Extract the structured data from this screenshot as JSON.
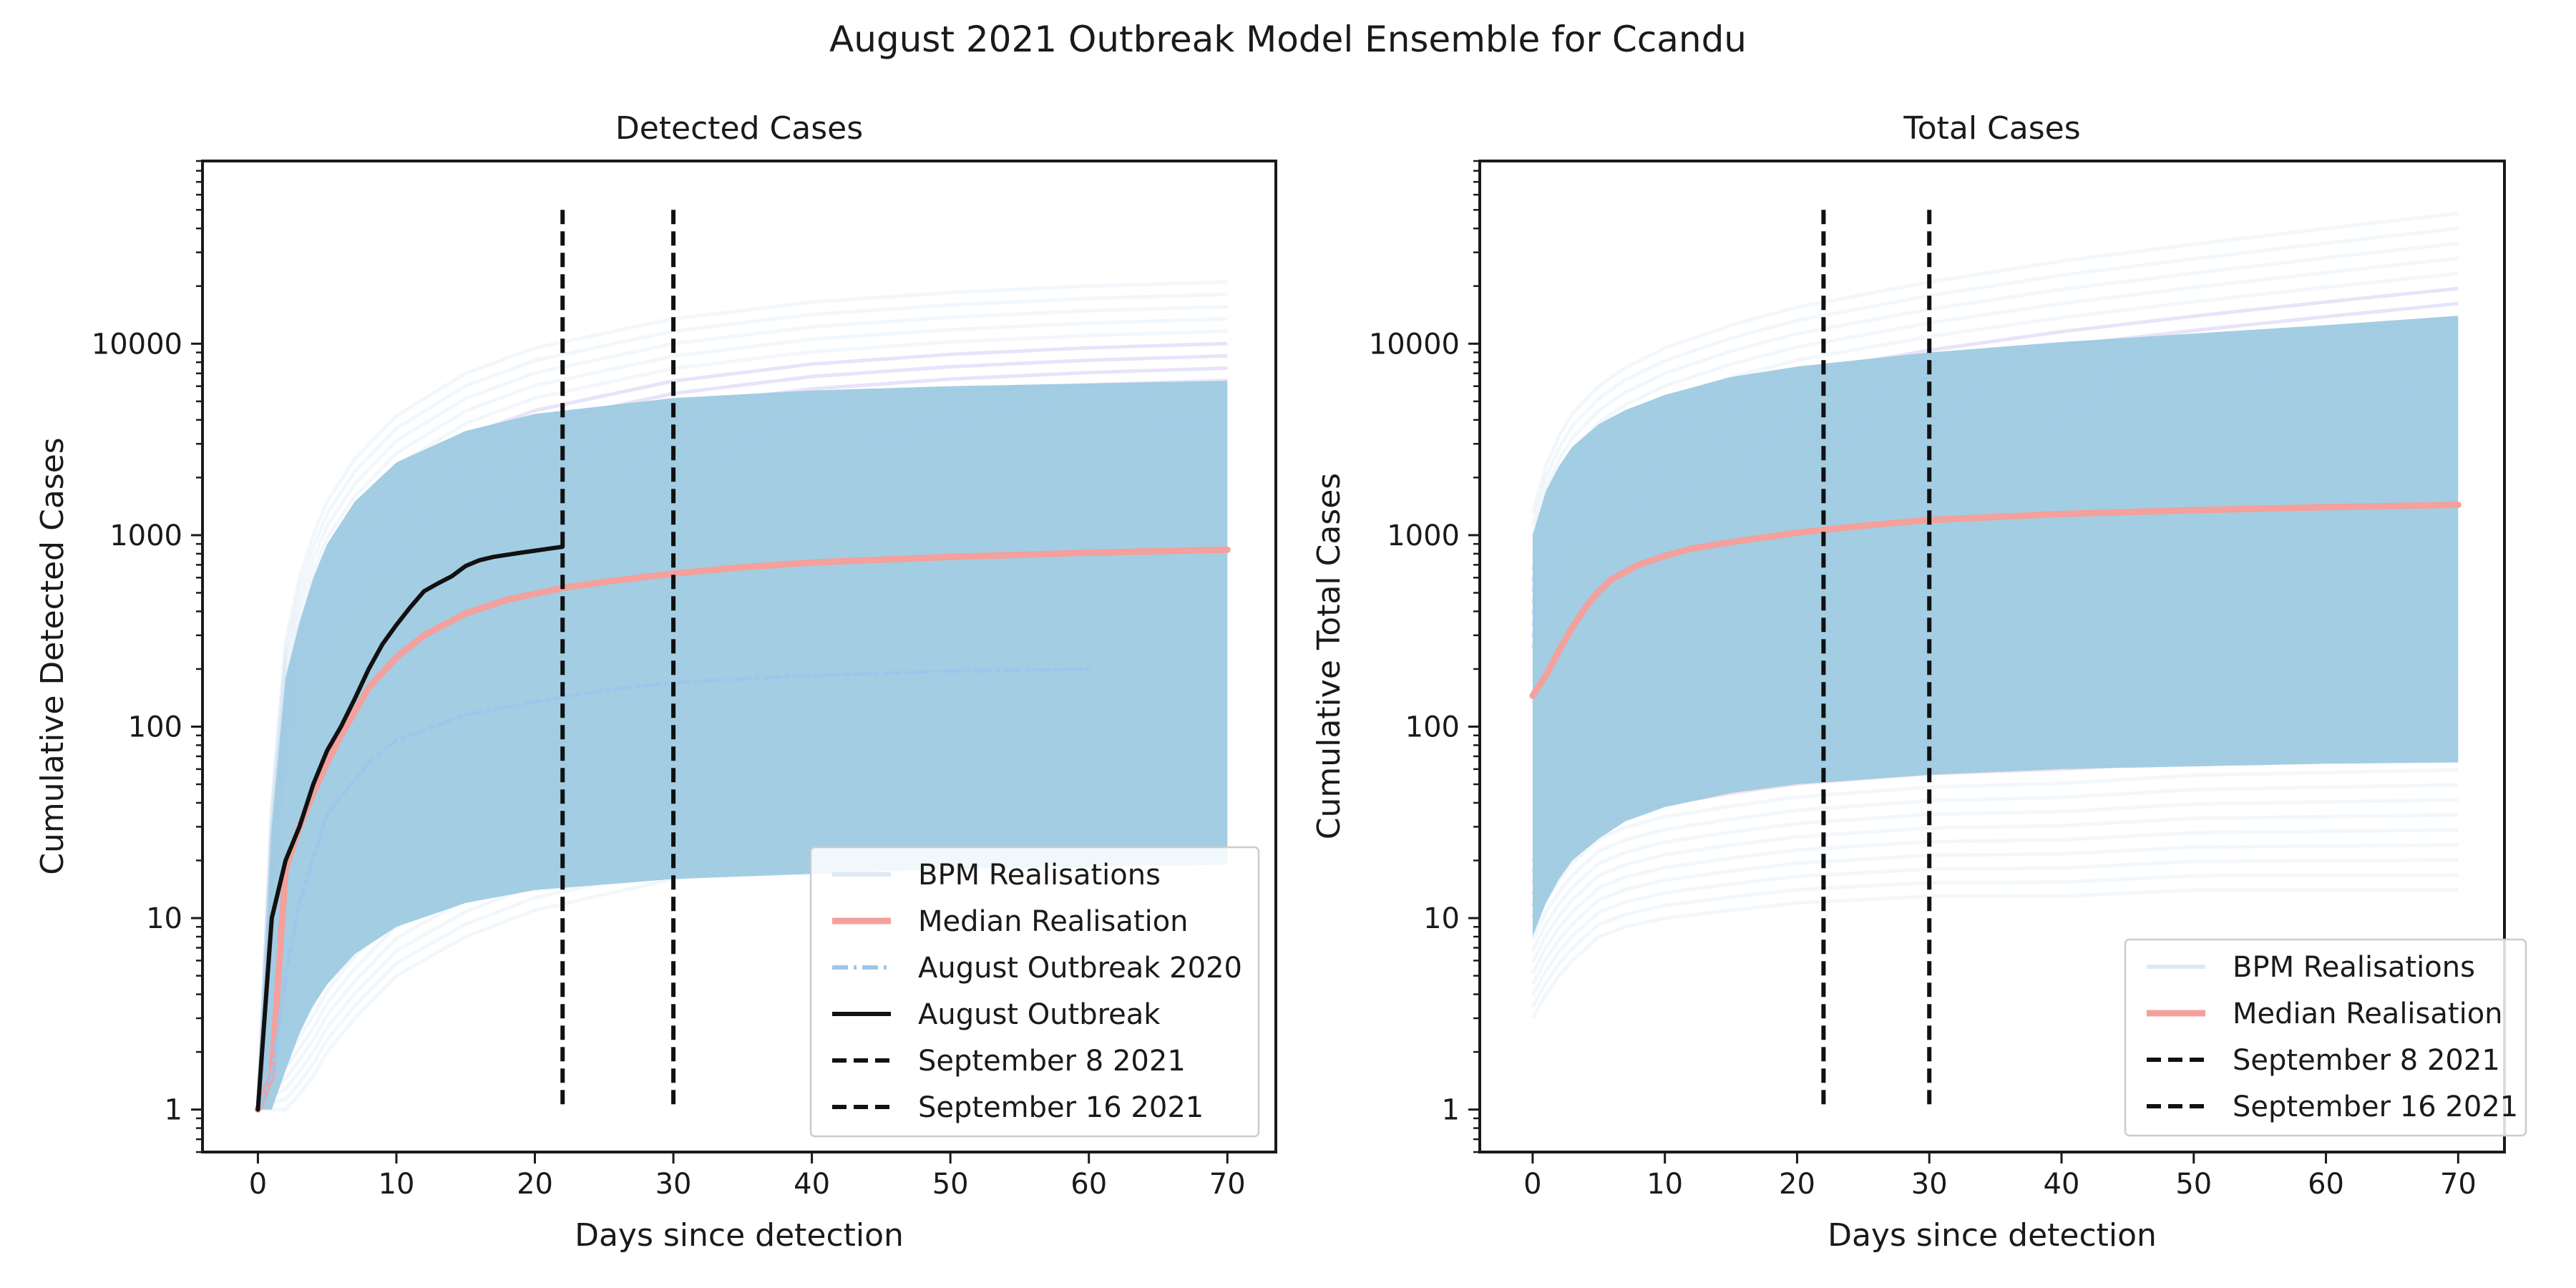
{
  "figure": {
    "title": "August 2021 Outbreak Model Ensemble for Ccandu"
  },
  "colors": {
    "ensemble_band": "#9ecae1",
    "realisation_line": "#c6dbef",
    "upper_tint": "#c9c4f5",
    "lower_tint": "#e6bfd6",
    "median": "#f4a09c",
    "outbreak_2020": "#9ec5ec",
    "outbreak_2021": "#111111",
    "vline": "#111111"
  },
  "chart_data": [
    {
      "type": "line",
      "title": "Detected Cases",
      "xlabel": "Days since detection",
      "ylabel": "Cumulative Detected Cases",
      "yscale": "log",
      "xlim": [
        -4,
        73.5
      ],
      "ylim": [
        0.6,
        90000
      ],
      "xticks": [
        0,
        10,
        20,
        30,
        40,
        50,
        60,
        70
      ],
      "yticks": [
        1,
        10,
        100,
        1000,
        10000
      ],
      "grid": false,
      "legend_position": "lower-right",
      "ensemble_band": {
        "name": "BPM Realisations",
        "x": [
          0,
          1,
          2,
          3,
          4,
          5,
          7,
          10,
          15,
          20,
          30,
          40,
          50,
          60,
          70
        ],
        "upper": [
          1,
          30,
          180,
          350,
          600,
          900,
          1500,
          2400,
          3500,
          4300,
          5200,
          5700,
          6000,
          6200,
          6400
        ],
        "lower": [
          1,
          1,
          1.6,
          2.5,
          3.5,
          4.5,
          6.5,
          9,
          12,
          14,
          16,
          17,
          18,
          18.5,
          19
        ],
        "upper_envelope": [
          1,
          40,
          280,
          600,
          1000,
          1500,
          2500,
          4200,
          7000,
          9500,
          13500,
          16500,
          18500,
          20000,
          21000
        ],
        "lower_envelope": [
          1,
          1,
          1,
          1.2,
          1.5,
          2,
          3,
          5,
          8,
          11,
          16,
          20,
          23,
          25,
          27
        ]
      },
      "series": [
        {
          "name": "Median Realisation",
          "x": [
            0,
            1,
            2,
            3,
            4,
            5,
            6,
            7,
            8,
            10,
            12,
            15,
            18,
            22,
            25,
            30,
            35,
            40,
            50,
            60,
            70
          ],
          "y": [
            1,
            1.5,
            18,
            30,
            45,
            65,
            90,
            120,
            160,
            230,
            300,
            390,
            460,
            530,
            570,
            630,
            680,
            720,
            770,
            810,
            840
          ]
        },
        {
          "name": "August Outbreak 2020",
          "x": [
            0,
            1,
            2,
            3,
            5,
            8,
            10,
            15,
            20,
            25,
            30,
            40,
            50,
            60
          ],
          "y": [
            1,
            1.5,
            5,
            12,
            35,
            65,
            85,
            115,
            135,
            155,
            170,
            185,
            195,
            200
          ]
        },
        {
          "name": "August Outbreak",
          "x": [
            0,
            1,
            2,
            3,
            4,
            5,
            6,
            7,
            8,
            9,
            10,
            11,
            12,
            13,
            14,
            15,
            16,
            17,
            18,
            19,
            20,
            21,
            22
          ],
          "y": [
            1,
            10,
            20,
            30,
            50,
            75,
            100,
            140,
            200,
            270,
            340,
            420,
            510,
            560,
            610,
            690,
            740,
            770,
            790,
            810,
            830,
            850,
            870
          ]
        }
      ],
      "vlines": [
        {
          "name": "September 8 2021",
          "x": 22
        },
        {
          "name": "September 16 2021",
          "x": 30
        }
      ],
      "legend": [
        "BPM Realisations",
        "Median Realisation",
        "August Outbreak 2020",
        "August Outbreak",
        "September 8 2021",
        "September 16 2021"
      ]
    },
    {
      "type": "line",
      "title": "Total Cases",
      "xlabel": "Days since detection",
      "ylabel": "Cumulative Total Cases",
      "yscale": "log",
      "xlim": [
        -4,
        73.5
      ],
      "ylim": [
        0.6,
        90000
      ],
      "xticks": [
        0,
        10,
        20,
        30,
        40,
        50,
        60,
        70
      ],
      "yticks": [
        1,
        10,
        100,
        1000,
        10000
      ],
      "grid": false,
      "legend_position": "lower-right",
      "ensemble_band": {
        "name": "BPM Realisations",
        "x": [
          0,
          1,
          2,
          3,
          5,
          7,
          10,
          15,
          20,
          30,
          40,
          50,
          60,
          70
        ],
        "upper": [
          1000,
          1700,
          2300,
          2900,
          3800,
          4500,
          5400,
          6700,
          7600,
          9000,
          10200,
          11300,
          12500,
          14000
        ],
        "lower": [
          8,
          12,
          16,
          20,
          26,
          32,
          38,
          45,
          50,
          56,
          60,
          62,
          64,
          65
        ],
        "upper_envelope": [
          1300,
          2300,
          3300,
          4300,
          6000,
          7500,
          9500,
          12500,
          15500,
          21000,
          27000,
          33000,
          40000,
          48000
        ],
        "lower_envelope": [
          3,
          4,
          5,
          6,
          8,
          9,
          10,
          11,
          12,
          13,
          13,
          14,
          14,
          14
        ]
      },
      "series": [
        {
          "name": "Median Realisation",
          "x": [
            0,
            1,
            2,
            3,
            4,
            5,
            6,
            8,
            10,
            12,
            15,
            20,
            25,
            30,
            40,
            50,
            60,
            70
          ],
          "y": [
            145,
            185,
            250,
            330,
            420,
            510,
            590,
            700,
            780,
            850,
            920,
            1030,
            1120,
            1200,
            1290,
            1350,
            1400,
            1440
          ]
        }
      ],
      "vlines": [
        {
          "name": "September 8 2021",
          "x": 22
        },
        {
          "name": "September 16 2021",
          "x": 30
        }
      ],
      "legend": [
        "BPM Realisations",
        "Median Realisation",
        "September 8 2021",
        "September 16 2021"
      ]
    }
  ]
}
